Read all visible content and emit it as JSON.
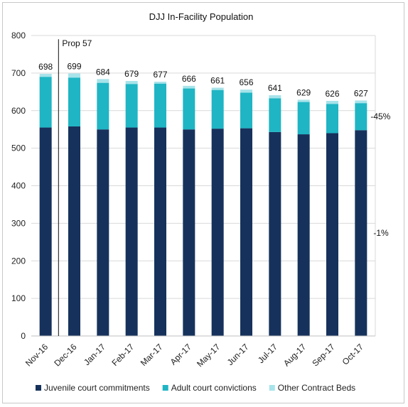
{
  "chart_data": {
    "type": "bar",
    "stacked": true,
    "title": "DJJ In-Facility Population",
    "xlabel": "",
    "ylabel": "",
    "ylim": [
      0,
      800
    ],
    "yticks": [
      0,
      100,
      200,
      300,
      400,
      500,
      600,
      700,
      800
    ],
    "grid": true,
    "legend_position": "bottom",
    "categories": [
      "Nov-16",
      "Dec-16",
      "Jan-17",
      "Feb-17",
      "Mar-17",
      "Apr-17",
      "May-17",
      "Jun-17",
      "Jul-17",
      "Aug-17",
      "Sep-17",
      "Oct-17"
    ],
    "series": [
      {
        "name": "Juvenile court commitments",
        "color": "#16325c",
        "values": [
          555,
          558,
          550,
          555,
          555,
          550,
          552,
          553,
          543,
          537,
          540,
          548
        ]
      },
      {
        "name": "Adult court convictions",
        "color": "#1fb5c4",
        "values": [
          135,
          130,
          124,
          116,
          117,
          109,
          103,
          95,
          90,
          86,
          78,
          72
        ]
      },
      {
        "name": "Other Contract Beds",
        "color": "#a7e3ea",
        "values": [
          8,
          11,
          10,
          8,
          5,
          7,
          6,
          8,
          8,
          6,
          8,
          7
        ]
      }
    ],
    "totals": [
      "698",
      "699",
      "684",
      "679",
      "677",
      "666",
      "661",
      "656",
      "641",
      "629",
      "626",
      "627"
    ],
    "annotations": {
      "marker_label": "Prop 57",
      "marker_position": "Nov-16 | Dec-16",
      "adult_change": "-45%",
      "juvenile_change": "-1%"
    }
  }
}
